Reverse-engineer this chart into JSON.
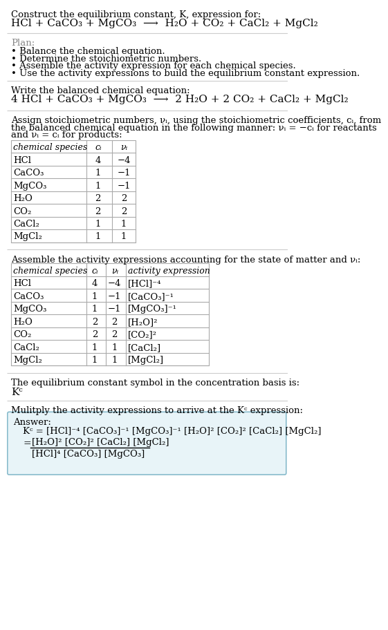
{
  "title_line": "Construct the equilibrium constant, K, expression for:",
  "reaction_unbalanced": "HCl + CaCO₃ + MgCO₃  ⟶  H₂O + CO₂ + CaCl₂ + MgCl₂",
  "plan_header": "Plan:",
  "plan_items": [
    "• Balance the chemical equation.",
    "• Determine the stoichiometric numbers.",
    "• Assemble the activity expression for each chemical species.",
    "• Use the activity expressions to build the equilibrium constant expression."
  ],
  "balanced_header": "Write the balanced chemical equation:",
  "balanced_equation": "4 HCl + CaCO₃ + MgCO₃  ⟶  2 H₂O + 2 CO₂ + CaCl₂ + MgCl₂",
  "stoich_header": "Assign stoichiometric numbers, νᵢ, using the stoichiometric coefficients, cᵢ, from\nthe balanced chemical equation in the following manner: νᵢ = −cᵢ for reactants\nand νᵢ = cᵢ for products:",
  "table1_headers": [
    "chemical species",
    "cᵢ",
    "νᵢ"
  ],
  "table1_rows": [
    [
      "HCl",
      "4",
      "−4"
    ],
    [
      "CaCO₃",
      "1",
      "−1"
    ],
    [
      "MgCO₃",
      "1",
      "−1"
    ],
    [
      "H₂O",
      "2",
      "2"
    ],
    [
      "CO₂",
      "2",
      "2"
    ],
    [
      "CaCl₂",
      "1",
      "1"
    ],
    [
      "MgCl₂",
      "1",
      "1"
    ]
  ],
  "activity_header": "Assemble the activity expressions accounting for the state of matter and νᵢ:",
  "table2_headers": [
    "chemical species",
    "cᵢ",
    "νᵢ",
    "activity expression"
  ],
  "table2_rows": [
    [
      "HCl",
      "4",
      "−4",
      "[HCl]⁻⁴"
    ],
    [
      "CaCO₃",
      "1",
      "−1",
      "[CaCO₃]⁻¹"
    ],
    [
      "MgCO₃",
      "1",
      "−1",
      "[MgCO₃]⁻¹"
    ],
    [
      "H₂O",
      "2",
      "2",
      "[H₂O]²"
    ],
    [
      "CO₂",
      "2",
      "2",
      "[CO₂]²"
    ],
    [
      "CaCl₂",
      "1",
      "1",
      "[CaCl₂]"
    ],
    [
      "MgCl₂",
      "1",
      "1",
      "[MgCl₂]"
    ]
  ],
  "kc_header": "The equilibrium constant symbol in the concentration basis is:",
  "kc_symbol": "Kᶜ",
  "multiply_header": "Mulitply the activity expressions to arrive at the Kᶜ expression:",
  "answer_label": "Answer:",
  "answer_line1_kc": "Kᶜ = [HCl]⁻⁴ [CaCO₃]⁻¹ [MgCO₃]⁻¹ [H₂O]² [CO₂]² [CaCl₂] [MgCl₂]",
  "answer_num": "[H₂O]² [CO₂]² [CaCl₂] [MgCl₂]",
  "answer_den": "[HCl]⁴ [CaCO₃] [MgCO₃]",
  "bg_color": "#ffffff",
  "text_color": "#000000",
  "gray_color": "#888888",
  "table_line_color": "#aaaaaa",
  "answer_box_bg": "#e8f4f8",
  "answer_box_border": "#88bbcc",
  "sep_line_color": "#cccccc"
}
